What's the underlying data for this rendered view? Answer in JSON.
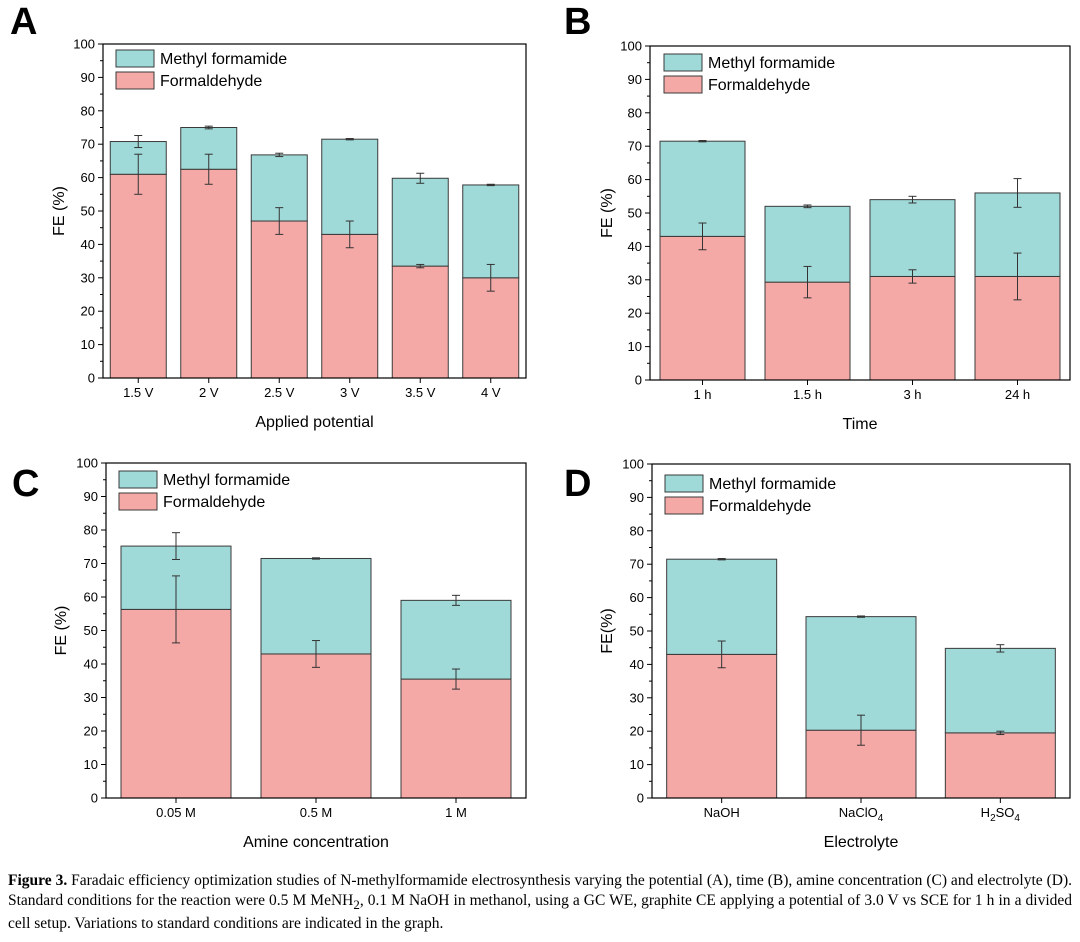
{
  "colors": {
    "bottom_fill": "#f4a9a7",
    "top_fill": "#9fd9d8",
    "bar_stroke": "#3a3a3a"
  },
  "chart_data": [
    {
      "panel": "A",
      "type": "bar",
      "stacked": true,
      "categories": [
        "1.5 V",
        "2 V",
        "2.5 V",
        "3 V",
        "3.5 V",
        "4 V"
      ],
      "xlabel": "Applied potential",
      "ylabel": "FE (%)",
      "ylim": [
        0,
        100
      ],
      "yticks": [
        0,
        10,
        20,
        30,
        40,
        50,
        60,
        70,
        80,
        90,
        100
      ],
      "legend_position": "top-left",
      "series": [
        {
          "name": "Formaldehyde",
          "values": [
            61,
            62.5,
            47,
            43,
            33.5,
            30
          ],
          "errors": [
            6,
            4.5,
            4,
            4,
            0.5,
            4
          ]
        },
        {
          "name": "Methyl formamide",
          "values": [
            9.8,
            12.5,
            19.8,
            28.5,
            26.3,
            27.8
          ],
          "errors": [
            1.8,
            0.4,
            0.5,
            0.2,
            1.5,
            0.2
          ]
        }
      ]
    },
    {
      "panel": "B",
      "type": "bar",
      "stacked": true,
      "categories": [
        "1 h",
        "1.5 h",
        "3 h",
        "24 h"
      ],
      "xlabel": "Time",
      "ylabel": "FE (%)",
      "ylim": [
        0,
        100
      ],
      "yticks": [
        0,
        10,
        20,
        30,
        40,
        50,
        60,
        70,
        80,
        90,
        100
      ],
      "legend_position": "top-left",
      "series": [
        {
          "name": "Formaldehyde",
          "values": [
            43,
            29.3,
            31,
            31
          ],
          "errors": [
            4,
            4.7,
            2,
            7
          ]
        },
        {
          "name": "Methyl formamide",
          "values": [
            28.5,
            22.7,
            23,
            25
          ],
          "errors": [
            0.2,
            0.4,
            1,
            4.3
          ]
        }
      ]
    },
    {
      "panel": "C",
      "type": "bar",
      "stacked": true,
      "categories": [
        "0.05 M",
        "0.5 M",
        "1 M"
      ],
      "xlabel": "Amine concentration",
      "ylabel": "FE (%)",
      "ylim": [
        0,
        100
      ],
      "yticks": [
        0,
        10,
        20,
        30,
        40,
        50,
        60,
        70,
        80,
        90,
        100
      ],
      "legend_position": "top-left",
      "series": [
        {
          "name": "Formaldehyde",
          "values": [
            56.3,
            43,
            35.5
          ],
          "errors": [
            10,
            4,
            3
          ]
        },
        {
          "name": "Methyl formamide",
          "values": [
            18.9,
            28.5,
            23.5
          ],
          "errors": [
            4,
            0.2,
            1.5
          ]
        }
      ]
    },
    {
      "panel": "D",
      "type": "bar",
      "stacked": true,
      "categories": [
        "NaOH",
        "NaClO4",
        "H2SO4"
      ],
      "category_labels": [
        {
          "base": "NaOH",
          "sub": "",
          "tail": ""
        },
        {
          "base": "NaClO",
          "sub": "4",
          "tail": ""
        },
        {
          "base": "H",
          "sub": "2",
          "tail": "SO",
          "sub2": "4"
        }
      ],
      "xlabel": "Electrolyte",
      "ylabel": "FE(%)",
      "ylim": [
        0,
        100
      ],
      "yticks": [
        0,
        10,
        20,
        30,
        40,
        50,
        60,
        70,
        80,
        90,
        100
      ],
      "legend_position": "top-left",
      "series": [
        {
          "name": "Formaldehyde",
          "values": [
            43,
            20.3,
            19.5
          ],
          "errors": [
            4,
            4.5,
            0.5
          ]
        },
        {
          "name": "Methyl formamide",
          "values": [
            28.5,
            34,
            25.3
          ],
          "errors": [
            0.2,
            0.2,
            1.1
          ]
        }
      ]
    }
  ],
  "caption": {
    "label": "Figure 3.",
    "segments": [
      {
        "text": " Faradaic efficiency optimization studies of N-methylformamide electrosynthesis varying the potential (A), time (B), amine concentration (C) and electrolyte (D). Standard conditions for the reaction were 0.5 M MeNH"
      },
      {
        "text": "2",
        "sub": true
      },
      {
        "text": ", 0.1 M NaOH in methanol, using a GC WE, graphite CE applying a potential of 3.0 V vs SCE for 1 h in a divided cell setup. Variations to standard conditions are indicated in the graph."
      }
    ]
  }
}
